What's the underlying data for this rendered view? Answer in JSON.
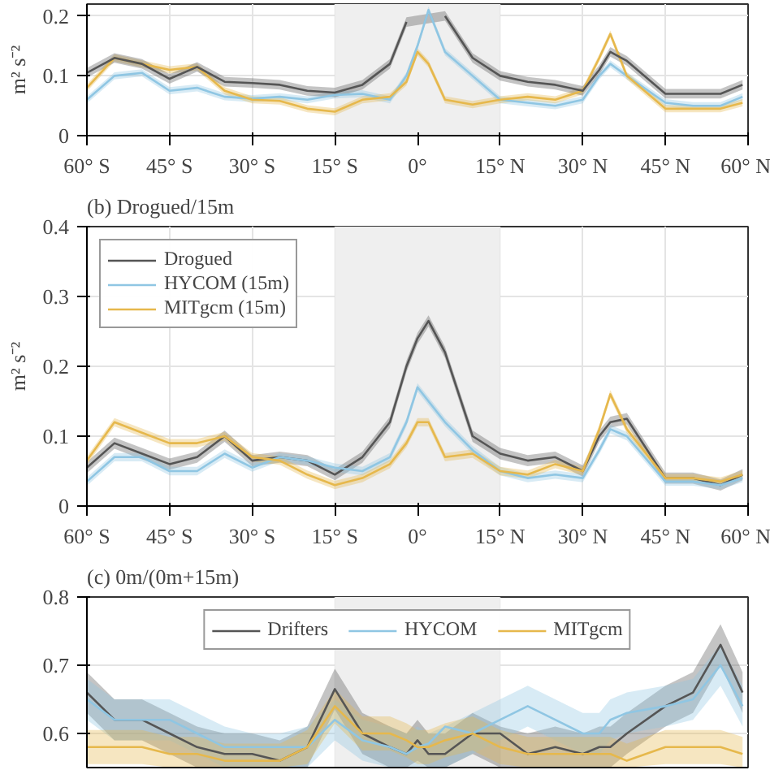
{
  "chart_data": [
    {
      "type": "line",
      "ylabel": "m² s⁻²",
      "x": [
        -60,
        -55,
        -50,
        -45,
        -40,
        -35,
        -30,
        -25,
        -20,
        -15,
        -10,
        -5,
        -2,
        0,
        2,
        5,
        10,
        15,
        20,
        25,
        30,
        33,
        35,
        38,
        45,
        50,
        55,
        59
      ],
      "xlim": [
        -60,
        60
      ],
      "xticks": [
        {
          "value": -60,
          "label": "60° S"
        },
        {
          "value": -45,
          "label": "45° S"
        },
        {
          "value": -30,
          "label": "30° S"
        },
        {
          "value": -15,
          "label": "15° S"
        },
        {
          "value": 0,
          "label": "0°"
        },
        {
          "value": 15,
          "label": "15° N"
        },
        {
          "value": 30,
          "label": "30° N"
        },
        {
          "value": 45,
          "label": "45° N"
        },
        {
          "value": 60,
          "label": "60° N"
        }
      ],
      "ylim": [
        0,
        0.22
      ],
      "yticks": [
        0,
        0.1,
        0.2
      ],
      "grid": true,
      "legend": false,
      "bands": [
        {
          "axis": "x",
          "from": -15,
          "to": 15,
          "color": "#efefef"
        }
      ],
      "series": [
        {
          "color": "#8fc6e3",
          "values": [
            0.06,
            0.1,
            0.105,
            0.075,
            0.08,
            0.065,
            0.062,
            0.065,
            0.06,
            0.068,
            0.07,
            0.06,
            0.1,
            0.15,
            0.21,
            0.14,
            0.1,
            0.06,
            0.055,
            0.05,
            0.06,
            0.1,
            0.12,
            0.1,
            0.055,
            0.05,
            0.05,
            0.065
          ],
          "lower": [
            0.054,
            0.094,
            0.099,
            0.069,
            0.074,
            0.059,
            0.056,
            0.059,
            0.054,
            0.062,
            0.064,
            0.054,
            0.094,
            0.144,
            0.204,
            0.134,
            0.094,
            0.054,
            0.049,
            0.044,
            0.054,
            0.094,
            0.114,
            0.094,
            0.049,
            0.044,
            0.044,
            0.059
          ],
          "upper": [
            0.066,
            0.106,
            0.111,
            0.081,
            0.086,
            0.071,
            0.068,
            0.071,
            0.066,
            0.074,
            0.076,
            0.066,
            0.106,
            0.156,
            0.216,
            0.146,
            0.106,
            0.066,
            0.061,
            0.056,
            0.066,
            0.106,
            0.126,
            0.106,
            0.061,
            0.056,
            0.056,
            0.071
          ]
        },
        {
          "color": "#e6b84c",
          "values": [
            0.08,
            0.13,
            0.12,
            0.11,
            0.115,
            0.075,
            0.06,
            0.058,
            0.045,
            0.04,
            0.06,
            0.065,
            0.09,
            0.14,
            0.12,
            0.06,
            0.052,
            0.06,
            0.065,
            0.06,
            0.075,
            0.13,
            0.17,
            0.1,
            0.045,
            0.045,
            0.045,
            0.055
          ],
          "lower": [
            0.074,
            0.124,
            0.114,
            0.104,
            0.109,
            0.069,
            0.054,
            0.052,
            0.039,
            0.034,
            0.054,
            0.059,
            0.084,
            0.134,
            0.114,
            0.054,
            0.046,
            0.054,
            0.059,
            0.054,
            0.069,
            0.124,
            0.164,
            0.094,
            0.039,
            0.039,
            0.039,
            0.049
          ],
          "upper": [
            0.086,
            0.136,
            0.126,
            0.116,
            0.121,
            0.081,
            0.066,
            0.064,
            0.051,
            0.046,
            0.066,
            0.071,
            0.096,
            0.146,
            0.126,
            0.066,
            0.058,
            0.066,
            0.071,
            0.066,
            0.081,
            0.136,
            0.176,
            0.106,
            0.051,
            0.051,
            0.051,
            0.061
          ]
        },
        {
          "color": "#555555",
          "values": [
            0.105,
            0.13,
            0.12,
            0.095,
            0.115,
            0.09,
            0.088,
            0.085,
            0.075,
            0.072,
            0.085,
            0.12,
            0.19,
            null,
            null,
            0.2,
            0.13,
            0.1,
            0.09,
            0.085,
            0.075,
            0.11,
            0.14,
            0.125,
            0.07,
            0.07,
            0.07,
            0.085
          ],
          "lower": [
            0.097,
            0.122,
            0.112,
            0.087,
            0.107,
            0.082,
            0.08,
            0.077,
            0.067,
            0.064,
            0.077,
            0.112,
            0.182,
            null,
            null,
            0.192,
            0.122,
            0.092,
            0.082,
            0.077,
            0.067,
            0.102,
            0.132,
            0.117,
            0.062,
            0.062,
            0.062,
            0.077
          ],
          "upper": [
            0.113,
            0.138,
            0.128,
            0.103,
            0.123,
            0.098,
            0.096,
            0.093,
            0.083,
            0.08,
            0.093,
            0.128,
            0.198,
            null,
            null,
            0.208,
            0.138,
            0.108,
            0.098,
            0.093,
            0.083,
            0.118,
            0.148,
            0.133,
            0.078,
            0.078,
            0.078,
            0.093
          ]
        }
      ]
    },
    {
      "type": "line",
      "title": "(b) Drogued/15m",
      "ylabel": "m² s⁻²",
      "x": [
        -60,
        -55,
        -50,
        -45,
        -40,
        -35,
        -30,
        -25,
        -20,
        -15,
        -10,
        -5,
        -2,
        0,
        2,
        5,
        10,
        15,
        20,
        25,
        30,
        33,
        35,
        38,
        45,
        50,
        55,
        59
      ],
      "xlim": [
        -60,
        60
      ],
      "xticks": [
        {
          "value": -60,
          "label": "60° S"
        },
        {
          "value": -45,
          "label": "45° S"
        },
        {
          "value": -30,
          "label": "30° S"
        },
        {
          "value": -15,
          "label": "15° S"
        },
        {
          "value": 0,
          "label": "0°"
        },
        {
          "value": 15,
          "label": "15° N"
        },
        {
          "value": 30,
          "label": "30° N"
        },
        {
          "value": 45,
          "label": "45° N"
        },
        {
          "value": 60,
          "label": "60° N"
        }
      ],
      "ylim": [
        0,
        0.4
      ],
      "yticks": [
        0,
        0.1,
        0.2,
        0.3,
        0.4
      ],
      "grid": true,
      "legend": "top left",
      "bands": [
        {
          "axis": "x",
          "from": -15,
          "to": 15,
          "color": "#efefef"
        }
      ],
      "series": [
        {
          "name": "Drogued",
          "color": "#555555",
          "values": [
            0.055,
            0.09,
            0.075,
            0.06,
            0.07,
            0.1,
            0.065,
            0.07,
            0.065,
            0.045,
            0.07,
            0.12,
            0.2,
            0.24,
            0.265,
            0.22,
            0.1,
            0.075,
            0.065,
            0.07,
            0.05,
            0.1,
            0.12,
            0.125,
            0.04,
            0.04,
            0.03,
            0.045
          ],
          "lower": [
            0.047,
            0.082,
            0.067,
            0.052,
            0.062,
            0.092,
            0.057,
            0.062,
            0.057,
            0.037,
            0.062,
            0.112,
            0.192,
            0.232,
            0.257,
            0.212,
            0.092,
            0.067,
            0.057,
            0.062,
            0.042,
            0.092,
            0.112,
            0.117,
            0.032,
            0.032,
            0.022,
            0.037
          ],
          "upper": [
            0.063,
            0.098,
            0.083,
            0.068,
            0.078,
            0.108,
            0.073,
            0.078,
            0.073,
            0.053,
            0.078,
            0.128,
            0.208,
            0.248,
            0.273,
            0.228,
            0.108,
            0.083,
            0.073,
            0.078,
            0.058,
            0.108,
            0.128,
            0.133,
            0.048,
            0.048,
            0.038,
            0.053
          ]
        },
        {
          "name": "HYCOM (15m)",
          "color": "#8fc6e3",
          "values": [
            0.035,
            0.07,
            0.07,
            0.05,
            0.05,
            0.075,
            0.055,
            0.07,
            0.065,
            0.055,
            0.05,
            0.07,
            0.12,
            0.17,
            0.15,
            0.12,
            0.08,
            0.05,
            0.04,
            0.045,
            0.04,
            0.08,
            0.11,
            0.1,
            0.035,
            0.035,
            0.03,
            0.04
          ],
          "lower": [
            0.029,
            0.064,
            0.064,
            0.044,
            0.044,
            0.069,
            0.049,
            0.064,
            0.059,
            0.049,
            0.044,
            0.064,
            0.114,
            0.164,
            0.144,
            0.114,
            0.074,
            0.044,
            0.034,
            0.039,
            0.034,
            0.074,
            0.104,
            0.094,
            0.029,
            0.029,
            0.024,
            0.034
          ],
          "upper": [
            0.041,
            0.076,
            0.076,
            0.056,
            0.056,
            0.081,
            0.061,
            0.076,
            0.071,
            0.061,
            0.056,
            0.076,
            0.126,
            0.176,
            0.156,
            0.126,
            0.086,
            0.056,
            0.046,
            0.051,
            0.046,
            0.086,
            0.116,
            0.106,
            0.041,
            0.041,
            0.036,
            0.046
          ]
        },
        {
          "name": "MITgcm (15m)",
          "color": "#e6b84c",
          "values": [
            0.065,
            0.12,
            0.105,
            0.09,
            0.09,
            0.1,
            0.07,
            0.065,
            0.045,
            0.03,
            0.04,
            0.06,
            0.09,
            0.12,
            0.12,
            0.07,
            0.075,
            0.05,
            0.045,
            0.06,
            0.05,
            0.11,
            0.16,
            0.11,
            0.04,
            0.04,
            0.035,
            0.045
          ],
          "lower": [
            0.059,
            0.114,
            0.099,
            0.084,
            0.084,
            0.094,
            0.064,
            0.059,
            0.039,
            0.024,
            0.034,
            0.054,
            0.084,
            0.114,
            0.114,
            0.064,
            0.069,
            0.044,
            0.039,
            0.054,
            0.044,
            0.104,
            0.154,
            0.104,
            0.034,
            0.034,
            0.029,
            0.039
          ],
          "upper": [
            0.071,
            0.126,
            0.111,
            0.096,
            0.096,
            0.106,
            0.076,
            0.071,
            0.051,
            0.036,
            0.046,
            0.066,
            0.096,
            0.126,
            0.126,
            0.076,
            0.081,
            0.056,
            0.051,
            0.066,
            0.056,
            0.116,
            0.166,
            0.116,
            0.046,
            0.046,
            0.041,
            0.051
          ]
        }
      ]
    },
    {
      "type": "line",
      "title": "(c) 0m/(0m+15m)",
      "x": [
        -60,
        -55,
        -50,
        -45,
        -40,
        -35,
        -30,
        -25,
        -20,
        -15,
        -10,
        -5,
        -2,
        0,
        2,
        5,
        10,
        15,
        20,
        25,
        30,
        33,
        35,
        38,
        45,
        50,
        55,
        59
      ],
      "xlim": [
        -60,
        60
      ],
      "ylim": [
        0.55,
        0.8
      ],
      "yticks": [
        0.6,
        0.7,
        0.8
      ],
      "grid": true,
      "legend": "top",
      "bands": [
        {
          "axis": "x",
          "from": -15,
          "to": 15,
          "color": "#efefef"
        }
      ],
      "series": [
        {
          "name": "Drifters",
          "color": "#555555",
          "values": [
            0.66,
            0.62,
            0.62,
            0.6,
            0.58,
            0.57,
            0.57,
            0.56,
            0.58,
            0.665,
            0.6,
            0.58,
            0.57,
            0.59,
            0.57,
            0.57,
            0.6,
            0.6,
            0.57,
            0.58,
            0.57,
            0.58,
            0.58,
            0.6,
            0.64,
            0.66,
            0.73,
            0.66
          ],
          "lower": [
            0.63,
            0.59,
            0.59,
            0.57,
            0.55,
            0.55,
            0.55,
            0.55,
            0.55,
            0.635,
            0.57,
            0.55,
            0.55,
            0.56,
            0.55,
            0.55,
            0.57,
            0.55,
            0.55,
            0.55,
            0.55,
            0.55,
            0.55,
            0.57,
            0.61,
            0.63,
            0.7,
            0.63
          ],
          "upper": [
            0.69,
            0.65,
            0.65,
            0.63,
            0.61,
            0.6,
            0.6,
            0.59,
            0.61,
            0.695,
            0.63,
            0.61,
            0.6,
            0.62,
            0.6,
            0.6,
            0.63,
            0.61,
            0.6,
            0.61,
            0.6,
            0.61,
            0.61,
            0.63,
            0.67,
            0.69,
            0.76,
            0.69
          ]
        },
        {
          "name": "HYCOM",
          "color": "#8fc6e3",
          "values": [
            0.65,
            0.62,
            0.62,
            0.62,
            0.6,
            0.58,
            0.58,
            0.58,
            0.58,
            0.62,
            0.59,
            0.58,
            0.57,
            0.58,
            0.585,
            0.61,
            0.6,
            0.62,
            0.64,
            0.62,
            0.6,
            0.6,
            0.62,
            0.63,
            0.64,
            0.65,
            0.7,
            0.64
          ],
          "lower": [
            0.62,
            0.59,
            0.59,
            0.59,
            0.57,
            0.55,
            0.55,
            0.55,
            0.55,
            0.59,
            0.56,
            0.55,
            0.55,
            0.55,
            0.55,
            0.55,
            0.57,
            0.59,
            0.61,
            0.59,
            0.57,
            0.57,
            0.59,
            0.6,
            0.61,
            0.62,
            0.67,
            0.61
          ],
          "upper": [
            0.68,
            0.65,
            0.65,
            0.65,
            0.63,
            0.61,
            0.6,
            0.6,
            0.61,
            0.65,
            0.62,
            0.61,
            0.6,
            0.61,
            0.6,
            0.61,
            0.63,
            0.65,
            0.67,
            0.65,
            0.63,
            0.63,
            0.65,
            0.66,
            0.67,
            0.68,
            0.73,
            0.67
          ]
        },
        {
          "name": "MITgcm",
          "color": "#e6b84c",
          "values": [
            0.58,
            0.58,
            0.58,
            0.57,
            0.57,
            0.56,
            0.56,
            0.56,
            0.58,
            0.64,
            0.6,
            0.6,
            0.59,
            0.58,
            0.58,
            0.59,
            0.6,
            0.58,
            0.57,
            0.57,
            0.57,
            0.57,
            0.57,
            0.56,
            0.58,
            0.58,
            0.58,
            0.57
          ],
          "lower": [
            0.555,
            0.555,
            0.555,
            0.55,
            0.55,
            0.55,
            0.55,
            0.55,
            0.555,
            0.615,
            0.575,
            0.575,
            0.565,
            0.555,
            0.555,
            0.565,
            0.575,
            0.555,
            0.55,
            0.55,
            0.55,
            0.55,
            0.55,
            0.55,
            0.555,
            0.555,
            0.555,
            0.55
          ],
          "upper": [
            0.605,
            0.605,
            0.605,
            0.595,
            0.595,
            0.585,
            0.585,
            0.585,
            0.605,
            0.665,
            0.625,
            0.625,
            0.615,
            0.605,
            0.605,
            0.615,
            0.625,
            0.605,
            0.595,
            0.595,
            0.595,
            0.595,
            0.595,
            0.585,
            0.605,
            0.605,
            0.605,
            0.595
          ]
        }
      ]
    }
  ]
}
